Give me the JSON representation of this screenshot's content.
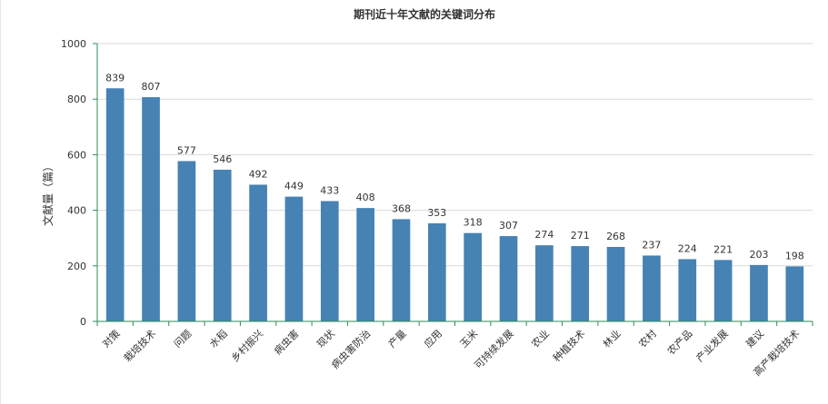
{
  "chart_data": {
    "type": "bar",
    "title": "期刊近十年文献的关键词分布",
    "xlabel": "",
    "ylabel": "文献量（篇）",
    "ylim": [
      0,
      1000
    ],
    "yticks": [
      0,
      200,
      400,
      600,
      800,
      1000
    ],
    "grid": true,
    "legend": "none",
    "bar_color": "#4682B4",
    "axis_color": "#2E8B57",
    "categories": [
      "对策",
      "栽培技术",
      "问题",
      "水稻",
      "乡村振兴",
      "病虫害",
      "现状",
      "病虫害防治",
      "产量",
      "应用",
      "玉米",
      "可持续发展",
      "农业",
      "种植技术",
      "林业",
      "农村",
      "农产品",
      "产业发展",
      "建议",
      "高产栽培技术"
    ],
    "values": [
      839,
      807,
      577,
      546,
      492,
      449,
      433,
      408,
      368,
      353,
      318,
      307,
      274,
      271,
      268,
      237,
      224,
      221,
      203,
      198
    ]
  }
}
